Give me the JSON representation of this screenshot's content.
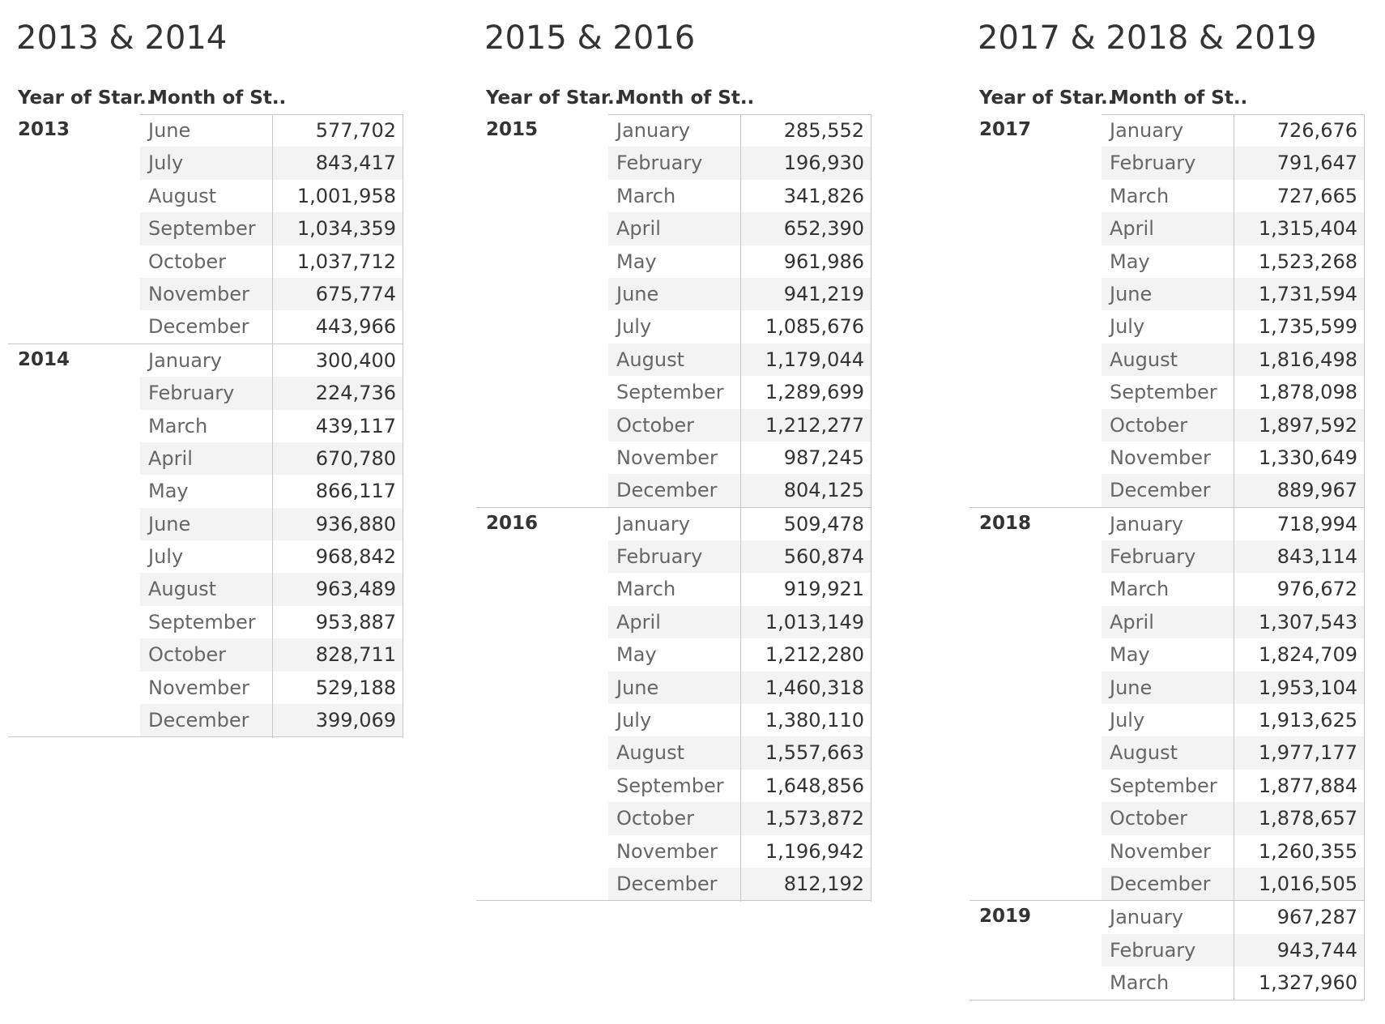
{
  "panels": [
    {
      "title": "2013 & 2014",
      "col_year": "Year of Star..",
      "col_month": "Month of St..",
      "years": [
        {
          "year": "2013",
          "rows": [
            [
              "June",
              "577,702"
            ],
            [
              "July",
              "843,417"
            ],
            [
              "August",
              "1,001,958"
            ],
            [
              "September",
              "1,034,359"
            ],
            [
              "October",
              "1,037,712"
            ],
            [
              "November",
              "675,774"
            ],
            [
              "December",
              "443,966"
            ]
          ]
        },
        {
          "year": "2014",
          "rows": [
            [
              "January",
              "300,400"
            ],
            [
              "February",
              "224,736"
            ],
            [
              "March",
              "439,117"
            ],
            [
              "April",
              "670,780"
            ],
            [
              "May",
              "866,117"
            ],
            [
              "June",
              "936,880"
            ],
            [
              "July",
              "968,842"
            ],
            [
              "August",
              "963,489"
            ],
            [
              "September",
              "953,887"
            ],
            [
              "October",
              "828,711"
            ],
            [
              "November",
              "529,188"
            ],
            [
              "December",
              "399,069"
            ]
          ]
        }
      ]
    },
    {
      "title": "2015 & 2016",
      "col_year": "Year of Star..",
      "col_month": "Month of St..",
      "years": [
        {
          "year": "2015",
          "rows": [
            [
              "January",
              "285,552"
            ],
            [
              "February",
              "196,930"
            ],
            [
              "March",
              "341,826"
            ],
            [
              "April",
              "652,390"
            ],
            [
              "May",
              "961,986"
            ],
            [
              "June",
              "941,219"
            ],
            [
              "July",
              "1,085,676"
            ],
            [
              "August",
              "1,179,044"
            ],
            [
              "September",
              "1,289,699"
            ],
            [
              "October",
              "1,212,277"
            ],
            [
              "November",
              "987,245"
            ],
            [
              "December",
              "804,125"
            ]
          ]
        },
        {
          "year": "2016",
          "rows": [
            [
              "January",
              "509,478"
            ],
            [
              "February",
              "560,874"
            ],
            [
              "March",
              "919,921"
            ],
            [
              "April",
              "1,013,149"
            ],
            [
              "May",
              "1,212,280"
            ],
            [
              "June",
              "1,460,318"
            ],
            [
              "July",
              "1,380,110"
            ],
            [
              "August",
              "1,557,663"
            ],
            [
              "September",
              "1,648,856"
            ],
            [
              "October",
              "1,573,872"
            ],
            [
              "November",
              "1,196,942"
            ],
            [
              "December",
              "812,192"
            ]
          ]
        }
      ]
    },
    {
      "title": "2017 & 2018 & 2019",
      "col_year": "Year of Star..",
      "col_month": "Month of St..",
      "years": [
        {
          "year": "2017",
          "rows": [
            [
              "January",
              "726,676"
            ],
            [
              "February",
              "791,647"
            ],
            [
              "March",
              "727,665"
            ],
            [
              "April",
              "1,315,404"
            ],
            [
              "May",
              "1,523,268"
            ],
            [
              "June",
              "1,731,594"
            ],
            [
              "July",
              "1,735,599"
            ],
            [
              "August",
              "1,816,498"
            ],
            [
              "September",
              "1,878,098"
            ],
            [
              "October",
              "1,897,592"
            ],
            [
              "November",
              "1,330,649"
            ],
            [
              "December",
              "889,967"
            ]
          ]
        },
        {
          "year": "2018",
          "rows": [
            [
              "January",
              "718,994"
            ],
            [
              "February",
              "843,114"
            ],
            [
              "March",
              "976,672"
            ],
            [
              "April",
              "1,307,543"
            ],
            [
              "May",
              "1,824,709"
            ],
            [
              "June",
              "1,953,104"
            ],
            [
              "July",
              "1,913,625"
            ],
            [
              "August",
              "1,977,177"
            ],
            [
              "September",
              "1,877,884"
            ],
            [
              "October",
              "1,878,657"
            ],
            [
              "November",
              "1,260,355"
            ],
            [
              "December",
              "1,016,505"
            ]
          ]
        },
        {
          "year": "2019",
          "rows": [
            [
              "January",
              "967,287"
            ],
            [
              "February",
              "943,744"
            ],
            [
              "March",
              "1,327,960"
            ]
          ]
        }
      ]
    }
  ],
  "chart_data": [
    {
      "type": "table",
      "title": "2013 & 2014",
      "columns": [
        "Year of Star..",
        "Month of St..",
        ""
      ],
      "rows": [
        [
          "2013",
          "June",
          577702
        ],
        [
          "2013",
          "July",
          843417
        ],
        [
          "2013",
          "August",
          1001958
        ],
        [
          "2013",
          "September",
          1034359
        ],
        [
          "2013",
          "October",
          1037712
        ],
        [
          "2013",
          "November",
          675774
        ],
        [
          "2013",
          "December",
          443966
        ],
        [
          "2014",
          "January",
          300400
        ],
        [
          "2014",
          "February",
          224736
        ],
        [
          "2014",
          "March",
          439117
        ],
        [
          "2014",
          "April",
          670780
        ],
        [
          "2014",
          "May",
          866117
        ],
        [
          "2014",
          "June",
          936880
        ],
        [
          "2014",
          "July",
          968842
        ],
        [
          "2014",
          "August",
          963489
        ],
        [
          "2014",
          "September",
          953887
        ],
        [
          "2014",
          "October",
          828711
        ],
        [
          "2014",
          "November",
          529188
        ],
        [
          "2014",
          "December",
          399069
        ]
      ]
    },
    {
      "type": "table",
      "title": "2015 & 2016",
      "columns": [
        "Year of Star..",
        "Month of St..",
        ""
      ],
      "rows": [
        [
          "2015",
          "January",
          285552
        ],
        [
          "2015",
          "February",
          196930
        ],
        [
          "2015",
          "March",
          341826
        ],
        [
          "2015",
          "April",
          652390
        ],
        [
          "2015",
          "May",
          961986
        ],
        [
          "2015",
          "June",
          941219
        ],
        [
          "2015",
          "July",
          1085676
        ],
        [
          "2015",
          "August",
          1179044
        ],
        [
          "2015",
          "September",
          1289699
        ],
        [
          "2015",
          "October",
          1212277
        ],
        [
          "2015",
          "November",
          987245
        ],
        [
          "2015",
          "December",
          804125
        ],
        [
          "2016",
          "January",
          509478
        ],
        [
          "2016",
          "February",
          560874
        ],
        [
          "2016",
          "March",
          919921
        ],
        [
          "2016",
          "April",
          1013149
        ],
        [
          "2016",
          "May",
          1212280
        ],
        [
          "2016",
          "June",
          1460318
        ],
        [
          "2016",
          "July",
          1380110
        ],
        [
          "2016",
          "August",
          1557663
        ],
        [
          "2016",
          "September",
          1648856
        ],
        [
          "2016",
          "October",
          1573872
        ],
        [
          "2016",
          "November",
          1196942
        ],
        [
          "2016",
          "December",
          812192
        ]
      ]
    },
    {
      "type": "table",
      "title": "2017 & 2018 & 2019",
      "columns": [
        "Year of Star..",
        "Month of St..",
        ""
      ],
      "rows": [
        [
          "2017",
          "January",
          726676
        ],
        [
          "2017",
          "February",
          791647
        ],
        [
          "2017",
          "March",
          727665
        ],
        [
          "2017",
          "April",
          1315404
        ],
        [
          "2017",
          "May",
          1523268
        ],
        [
          "2017",
          "June",
          1731594
        ],
        [
          "2017",
          "July",
          1735599
        ],
        [
          "2017",
          "August",
          1816498
        ],
        [
          "2017",
          "September",
          1878098
        ],
        [
          "2017",
          "October",
          1897592
        ],
        [
          "2017",
          "November",
          1330649
        ],
        [
          "2017",
          "December",
          889967
        ],
        [
          "2018",
          "January",
          718994
        ],
        [
          "2018",
          "February",
          843114
        ],
        [
          "2018",
          "March",
          976672
        ],
        [
          "2018",
          "April",
          1307543
        ],
        [
          "2018",
          "May",
          1824709
        ],
        [
          "2018",
          "June",
          1953104
        ],
        [
          "2018",
          "July",
          1913625
        ],
        [
          "2018",
          "August",
          1977177
        ],
        [
          "2018",
          "September",
          1877884
        ],
        [
          "2018",
          "October",
          1878657
        ],
        [
          "2018",
          "November",
          1260355
        ],
        [
          "2018",
          "December",
          1016505
        ],
        [
          "2019",
          "January",
          967287
        ],
        [
          "2019",
          "February",
          943744
        ],
        [
          "2019",
          "March",
          1327960
        ]
      ]
    }
  ]
}
